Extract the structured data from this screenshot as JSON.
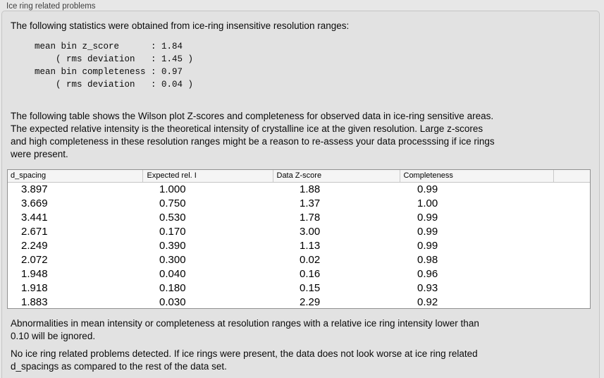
{
  "panel": {
    "title": "Ice ring related problems"
  },
  "intro": "The following statistics were obtained from ice-ring insensitive resolution ranges:",
  "stats_block": "mean bin z_score      : 1.84\n    ( rms deviation   : 1.45 )\nmean bin completeness : 0.97\n    ( rms deviation   : 0.04 )",
  "stats": {
    "mean_bin_z_score": "1.84",
    "mean_bin_z_score_rms_deviation": "1.45",
    "mean_bin_completeness": "0.97",
    "mean_bin_completeness_rms_deviation": "0.04"
  },
  "table_description": "The following table shows the Wilson plot Z-scores and completeness for observed data in ice-ring sensitive areas.\nThe expected relative intensity is the theoretical intensity of crystalline ice at the given resolution. Large z-scores\nand high completeness in these resolution ranges might be a reason to re-assess your data processsing if ice rings\nwere present.",
  "table": {
    "columns": [
      "d_spacing",
      "Expected rel. I",
      "Data Z-score",
      "Completeness"
    ],
    "rows": [
      [
        "3.897",
        "1.000",
        "1.88",
        "0.99"
      ],
      [
        "3.669",
        "0.750",
        "1.37",
        "1.00"
      ],
      [
        "3.441",
        "0.530",
        "1.78",
        "0.99"
      ],
      [
        "2.671",
        "0.170",
        "3.00",
        "0.99"
      ],
      [
        "2.249",
        "0.390",
        "1.13",
        "0.99"
      ],
      [
        "2.072",
        "0.300",
        "0.02",
        "0.98"
      ],
      [
        "1.948",
        "0.040",
        "0.16",
        "0.96"
      ],
      [
        "1.918",
        "0.180",
        "0.15",
        "0.93"
      ],
      [
        "1.883",
        "0.030",
        "2.29",
        "0.92"
      ]
    ]
  },
  "notes": {
    "ignore_threshold": "Abnormalities in mean intensity or completeness at resolution ranges with a relative ice ring intensity lower than\n0.10 will be ignored.",
    "conclusion": "No ice ring related problems detected. If ice rings were present, the data does not look worse at ice ring related\nd_spacings as compared to the rest of the data set."
  }
}
